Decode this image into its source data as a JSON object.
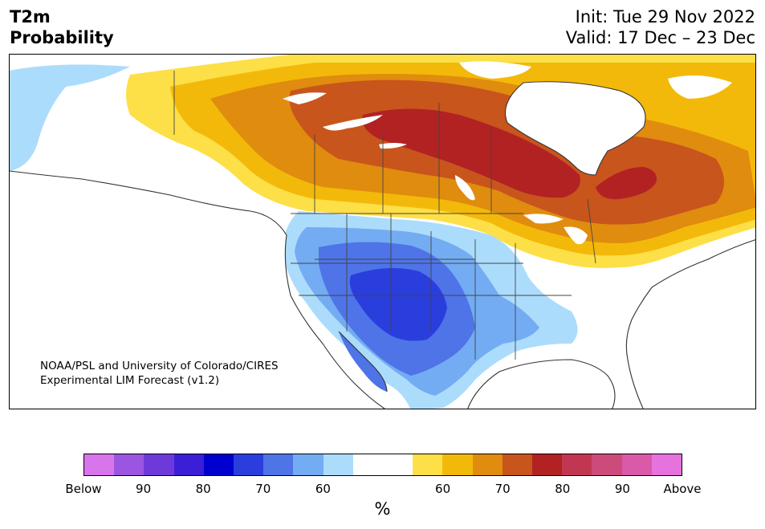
{
  "title": {
    "line1": "T2m",
    "line2": "Probability"
  },
  "dates": {
    "init": "Init: Tue 29 Nov 2022",
    "valid": "Valid: 17 Dec – 23 Dec"
  },
  "credit": {
    "line1": "NOAA/PSL and University of Colorado/CIRES",
    "line2": "Experimental LIM Forecast (v1.2)"
  },
  "colorbar": {
    "colors": [
      "#d875ea",
      "#9b55e0",
      "#6d3ad9",
      "#3a1fd6",
      "#0000cf",
      "#2a3ede",
      "#4e74e8",
      "#73acf2",
      "#acdcfb",
      "#ffffff",
      "#ffffff",
      "#fddf47",
      "#f3b90a",
      "#e08c0f",
      "#c8551c",
      "#b22223",
      "#c13752",
      "#cd4b7a",
      "#d95aa9",
      "#e672dd"
    ],
    "tick_labels": [
      "Below",
      "90",
      "80",
      "70",
      "60",
      "60",
      "70",
      "80",
      "90",
      "Above"
    ],
    "unit": "%"
  },
  "map_colors": {
    "water": "#ffffff",
    "land": "#ffffff",
    "below_60": "#acdcfb",
    "below_70": "#73acf2",
    "below_80": "#4e74e8",
    "below_90": "#2a3ede",
    "above_60": "#fddf47",
    "above_70": "#f3b90a",
    "above_80": "#e08c0f",
    "above_90": "#c8551c",
    "above_max": "#b22223",
    "coast": "#333333"
  }
}
